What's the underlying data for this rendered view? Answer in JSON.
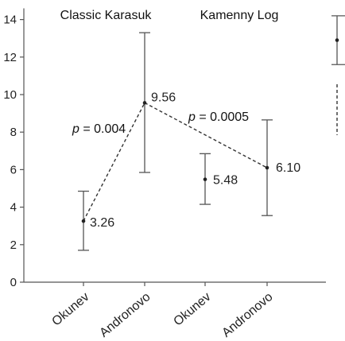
{
  "chart_data": {
    "type": "errorbar",
    "title": "",
    "xlabel": "",
    "ylabel": "",
    "ylim": [
      0,
      14.6
    ],
    "yticks": [
      0,
      2,
      4,
      6,
      8,
      10,
      12,
      14
    ],
    "categories": [
      "Okunev",
      "Andronovo",
      "Okunev",
      "Andronovo"
    ],
    "groups": [
      "Classic Karasuk",
      "Kamenny Log"
    ],
    "points": [
      {
        "category": "Okunev",
        "group": "Classic Karasuk",
        "value": 3.26,
        "label": "3.26",
        "lower": 1.7,
        "upper": 4.85
      },
      {
        "category": "Andronovo",
        "group": "Classic Karasuk",
        "value": 9.56,
        "label": "9.56",
        "lower": 5.85,
        "upper": 13.3
      },
      {
        "category": "Okunev",
        "group": "Kamenny Log",
        "value": 5.48,
        "label": "5.48",
        "lower": 4.15,
        "upper": 6.85
      },
      {
        "category": "Andronovo",
        "group": "Kamenny Log",
        "value": 6.1,
        "label": "6.10",
        "lower": 3.55,
        "upper": 8.65
      }
    ],
    "comparisons": [
      {
        "from": 0,
        "to": 1,
        "label_prefix": "p",
        "label_value": " = 0.004"
      },
      {
        "from": 1,
        "to": 3,
        "label_prefix": "p",
        "label_value": " = 0.0005"
      }
    ],
    "partial_series": {
      "value": 12.9,
      "lower": 11.6,
      "upper": 14.2
    },
    "grid": false,
    "colors": {
      "axis": "#555555",
      "marker": "#222222",
      "errorbar": "#555555",
      "line": "#333333"
    }
  }
}
